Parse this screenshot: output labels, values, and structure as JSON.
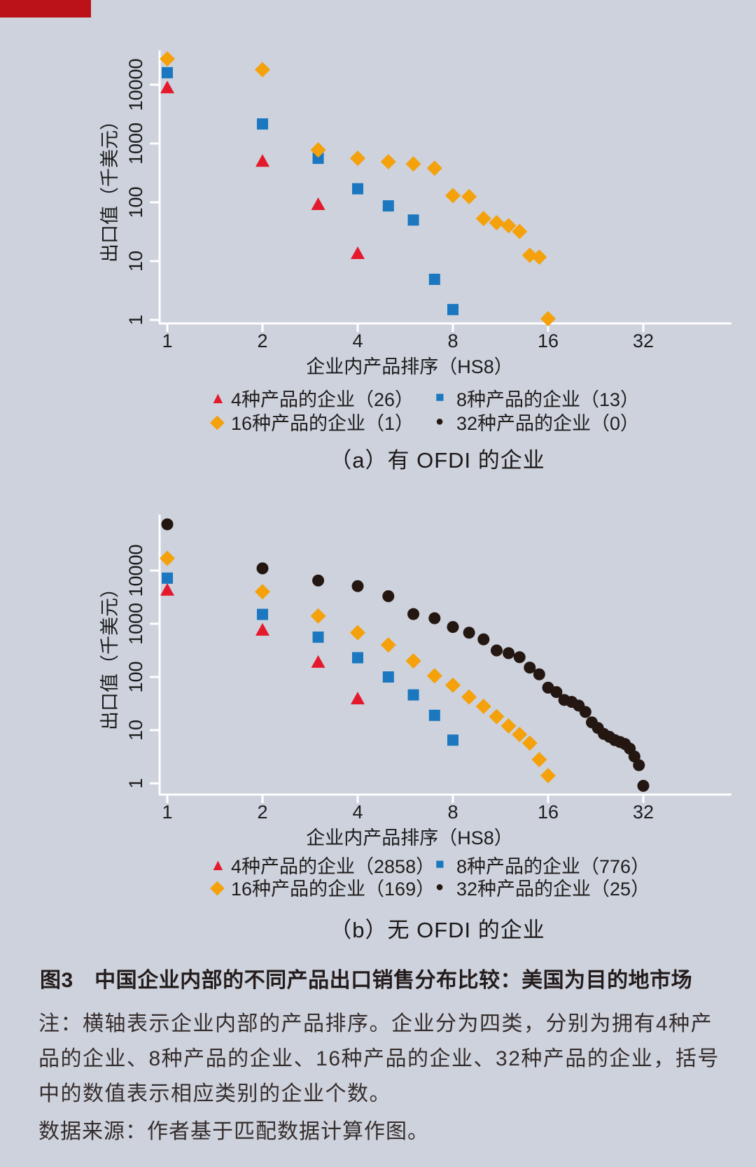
{
  "page": {
    "background": "#cdd2dc",
    "banner_color": "#bb1219"
  },
  "figure": {
    "caption": "图3　中国企业内部的不同产品出口销售分布比较：美国为目的地市场",
    "note_lines": [
      "注：横轴表示企业内部的产品排序。企业分为四类，分别为拥有4种产",
      "品的企业、8种产品的企业、16种产品的企业、32种产品的企业，括号",
      "中的数值表示相应类别的企业个数。"
    ],
    "source": "数据来源：作者基于匹配数据计算作图。"
  },
  "marker_glyphs": {
    "triangle": "▲",
    "square": "■",
    "diamond": "◆",
    "circle": "●"
  },
  "chart_data": [
    {
      "id": "a",
      "type": "scatter",
      "panel_label": "（a）有 OFDI 的企业",
      "xlabel": "企业内产品排序（HS8）",
      "ylabel": "出口值（千美元）",
      "x_scale": "log2",
      "y_scale": "log10",
      "x_ticks": [
        1,
        2,
        4,
        8,
        16,
        32
      ],
      "y_ticks": [
        1,
        10,
        100,
        1000,
        10000
      ],
      "xlim": [
        1,
        32
      ],
      "ylim": [
        0.9,
        40000
      ],
      "grid": false,
      "legend_position": "bottom",
      "series": [
        {
          "label": "4种产品的企业（26）",
          "marker": "triangle",
          "color": "#e41a2c",
          "count": 26,
          "x": [
            1,
            2,
            3,
            4
          ],
          "values": [
            8900,
            500,
            92,
            13.5
          ]
        },
        {
          "label": "8种产品的企业（13）",
          "marker": "square",
          "color": "#1a77c0",
          "count": 13,
          "x": [
            1,
            2,
            3,
            4,
            5,
            6,
            7,
            8
          ],
          "values": [
            16000,
            2150,
            560,
            170,
            87,
            50,
            4.9,
            1.5
          ]
        },
        {
          "label": "16种产品的企业（1）",
          "marker": "diamond",
          "color": "#f4a10c",
          "count": 1,
          "x": [
            1,
            2,
            3,
            4,
            5,
            6,
            7,
            8,
            9,
            10,
            11,
            12,
            13,
            14,
            15,
            16
          ],
          "values": [
            27500,
            18000,
            780,
            560,
            490,
            450,
            380,
            130,
            125,
            53,
            45,
            40,
            32,
            12.6,
            11.7,
            1.05
          ]
        },
        {
          "label": "32种产品的企业（0）",
          "marker": "circle",
          "color": "#241711",
          "count": 0,
          "x": [],
          "values": []
        }
      ]
    },
    {
      "id": "b",
      "type": "scatter",
      "panel_label": "（b）无 OFDI 的企业",
      "xlabel": "企业内产品排序（HS8）",
      "ylabel": "出口值（千美元）",
      "x_scale": "log2",
      "y_scale": "log10",
      "x_ticks": [
        1,
        2,
        4,
        8,
        16,
        32
      ],
      "y_ticks": [
        1,
        10,
        100,
        1000,
        10000
      ],
      "xlim": [
        1,
        32
      ],
      "ylim": [
        0.8,
        110000
      ],
      "grid": false,
      "legend_position": "bottom",
      "series": [
        {
          "label": "4种产品的企业（2858）",
          "marker": "triangle",
          "color": "#e41a2c",
          "count": 2858,
          "x": [
            1,
            2,
            3,
            4
          ],
          "values": [
            4300,
            760,
            190,
            39
          ]
        },
        {
          "label": "8种产品的企业（776）",
          "marker": "square",
          "color": "#1a77c0",
          "count": 776,
          "x": [
            1,
            2,
            3,
            4,
            5,
            6,
            7,
            8
          ],
          "values": [
            7200,
            1500,
            560,
            230,
            100,
            46,
            19,
            6.5
          ]
        },
        {
          "label": "16种产品的企业（169）",
          "marker": "diamond",
          "color": "#f4a10c",
          "count": 169,
          "x": [
            1,
            2,
            3,
            4,
            5,
            6,
            7,
            8,
            9,
            10,
            11,
            12,
            13,
            14,
            15,
            16
          ],
          "values": [
            17000,
            4000,
            1400,
            680,
            400,
            200,
            105,
            70,
            42,
            28,
            18,
            12,
            8.3,
            5.7,
            2.8,
            1.4
          ]
        },
        {
          "label": "32种产品的企业（25）",
          "marker": "circle",
          "color": "#241711",
          "count": 25,
          "x": [
            1,
            2,
            3,
            4,
            5,
            6,
            7,
            8,
            9,
            10,
            11,
            12,
            13,
            14,
            15,
            16,
            17,
            18,
            19,
            20,
            21,
            22,
            23,
            24,
            25,
            26,
            27,
            28,
            29,
            30,
            31,
            32
          ],
          "values": [
            74000,
            11000,
            6500,
            5100,
            3300,
            1520,
            1270,
            870,
            680,
            510,
            315,
            280,
            235,
            150,
            112,
            63,
            52,
            37,
            34,
            29,
            22,
            14,
            11,
            8.5,
            7.5,
            6.5,
            6.0,
            5.5,
            4.5,
            3.2,
            2.2,
            0.9
          ]
        }
      ]
    }
  ]
}
